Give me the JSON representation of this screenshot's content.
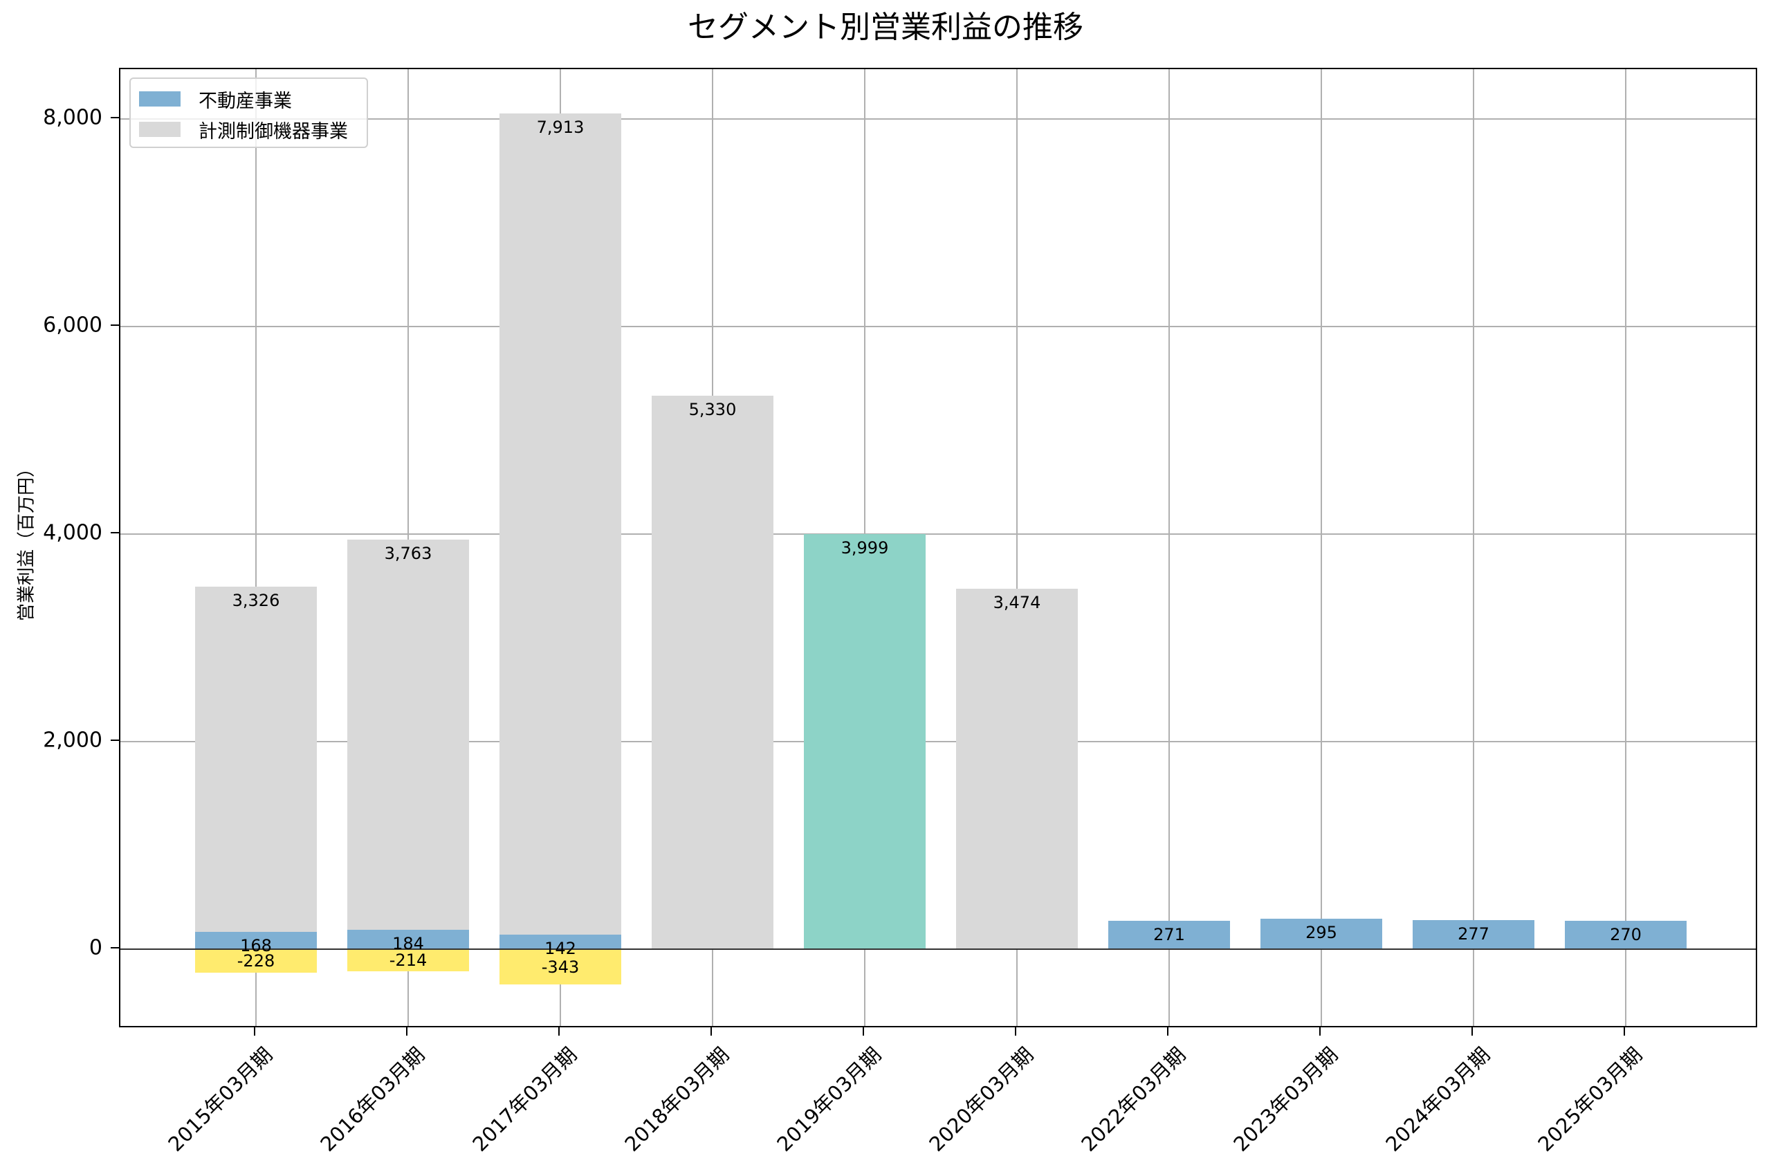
{
  "chart_data": {
    "type": "bar",
    "stacked": true,
    "title": "セグメント別営業利益の推移",
    "xlabel": "",
    "ylabel": "営業利益（百万円）",
    "ylim": [
      -767,
      8480
    ],
    "yticks": [
      0,
      2000,
      4000,
      6000,
      8000
    ],
    "ytick_labels": [
      "0",
      "2,000",
      "4,000",
      "6,000",
      "8,000"
    ],
    "grid": true,
    "legend_position": "upper left",
    "categories": [
      "2015年03月期",
      "2016年03月期",
      "2017年03月期",
      "2018年03月期",
      "2019年03月期",
      "2020年03月期",
      "2022年03月期",
      "2023年03月期",
      "2024年03月期",
      "2025年03月期"
    ],
    "series": [
      {
        "name": "不動産事業",
        "color": "#7fb0d3",
        "values": [
          168,
          184,
          142,
          null,
          null,
          null,
          271,
          295,
          277,
          270
        ],
        "labels": [
          "168",
          "184",
          "142",
          "",
          "",
          "",
          "271",
          "295",
          "277",
          "270"
        ]
      },
      {
        "name": "計測制御機器事業",
        "color": "#d9d9d9",
        "values": [
          3326,
          3763,
          7913,
          5330,
          null,
          3474,
          null,
          null,
          null,
          null
        ],
        "labels": [
          "3,326",
          "3,763",
          "7,913",
          "5,330",
          "",
          "3,474",
          "",
          "",
          "",
          ""
        ]
      },
      {
        "name": "",
        "color": "#8dd3c7",
        "values": [
          null,
          null,
          null,
          null,
          3999,
          null,
          null,
          null,
          null,
          null
        ],
        "labels": [
          "",
          "",
          "",
          "",
          "3,999",
          "",
          "",
          "",
          "",
          ""
        ]
      },
      {
        "name": "",
        "color": "#ffeb6e",
        "values": [
          -228,
          -214,
          -343,
          null,
          null,
          null,
          null,
          null,
          null,
          null
        ],
        "labels": [
          "-228",
          "-214",
          "-343",
          "",
          "",
          "",
          "",
          "",
          "",
          ""
        ]
      }
    ]
  },
  "legend": {
    "items": [
      {
        "label": "不動産事業",
        "color": "#7fb0d3"
      },
      {
        "label": "計測制御機器事業",
        "color": "#d9d9d9"
      }
    ]
  }
}
